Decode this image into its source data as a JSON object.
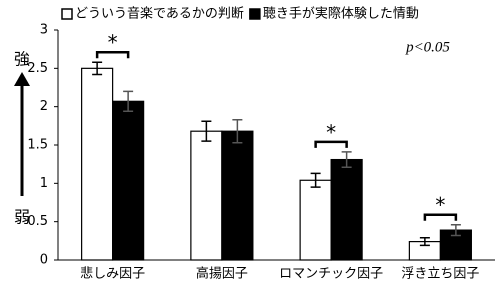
{
  "chart_data": {
    "type": "bar",
    "categories": [
      "悲しみ因子",
      "高揚因子",
      "ロマンチック因子",
      "浮き立ち因子"
    ],
    "series": [
      {
        "name": "どういう音楽であるかの判断",
        "color": "#ffffff",
        "values": [
          2.5,
          1.68,
          1.04,
          0.24
        ],
        "errors": [
          0.08,
          0.13,
          0.09,
          0.05
        ]
      },
      {
        "name": "聴き手が実際体験した情動",
        "color": "#000000",
        "values": [
          2.07,
          1.68,
          1.31,
          0.39
        ],
        "errors": [
          0.13,
          0.15,
          0.1,
          0.07
        ]
      }
    ],
    "ylim": [
      0,
      3
    ],
    "yticks": [
      0,
      0.5,
      1,
      1.5,
      2,
      2.5,
      3
    ],
    "y_axis_top_label": "強",
    "y_axis_bottom_label": "弱",
    "significance_labels": [
      "*",
      null,
      "*",
      "*"
    ],
    "note": "p<0.05"
  }
}
